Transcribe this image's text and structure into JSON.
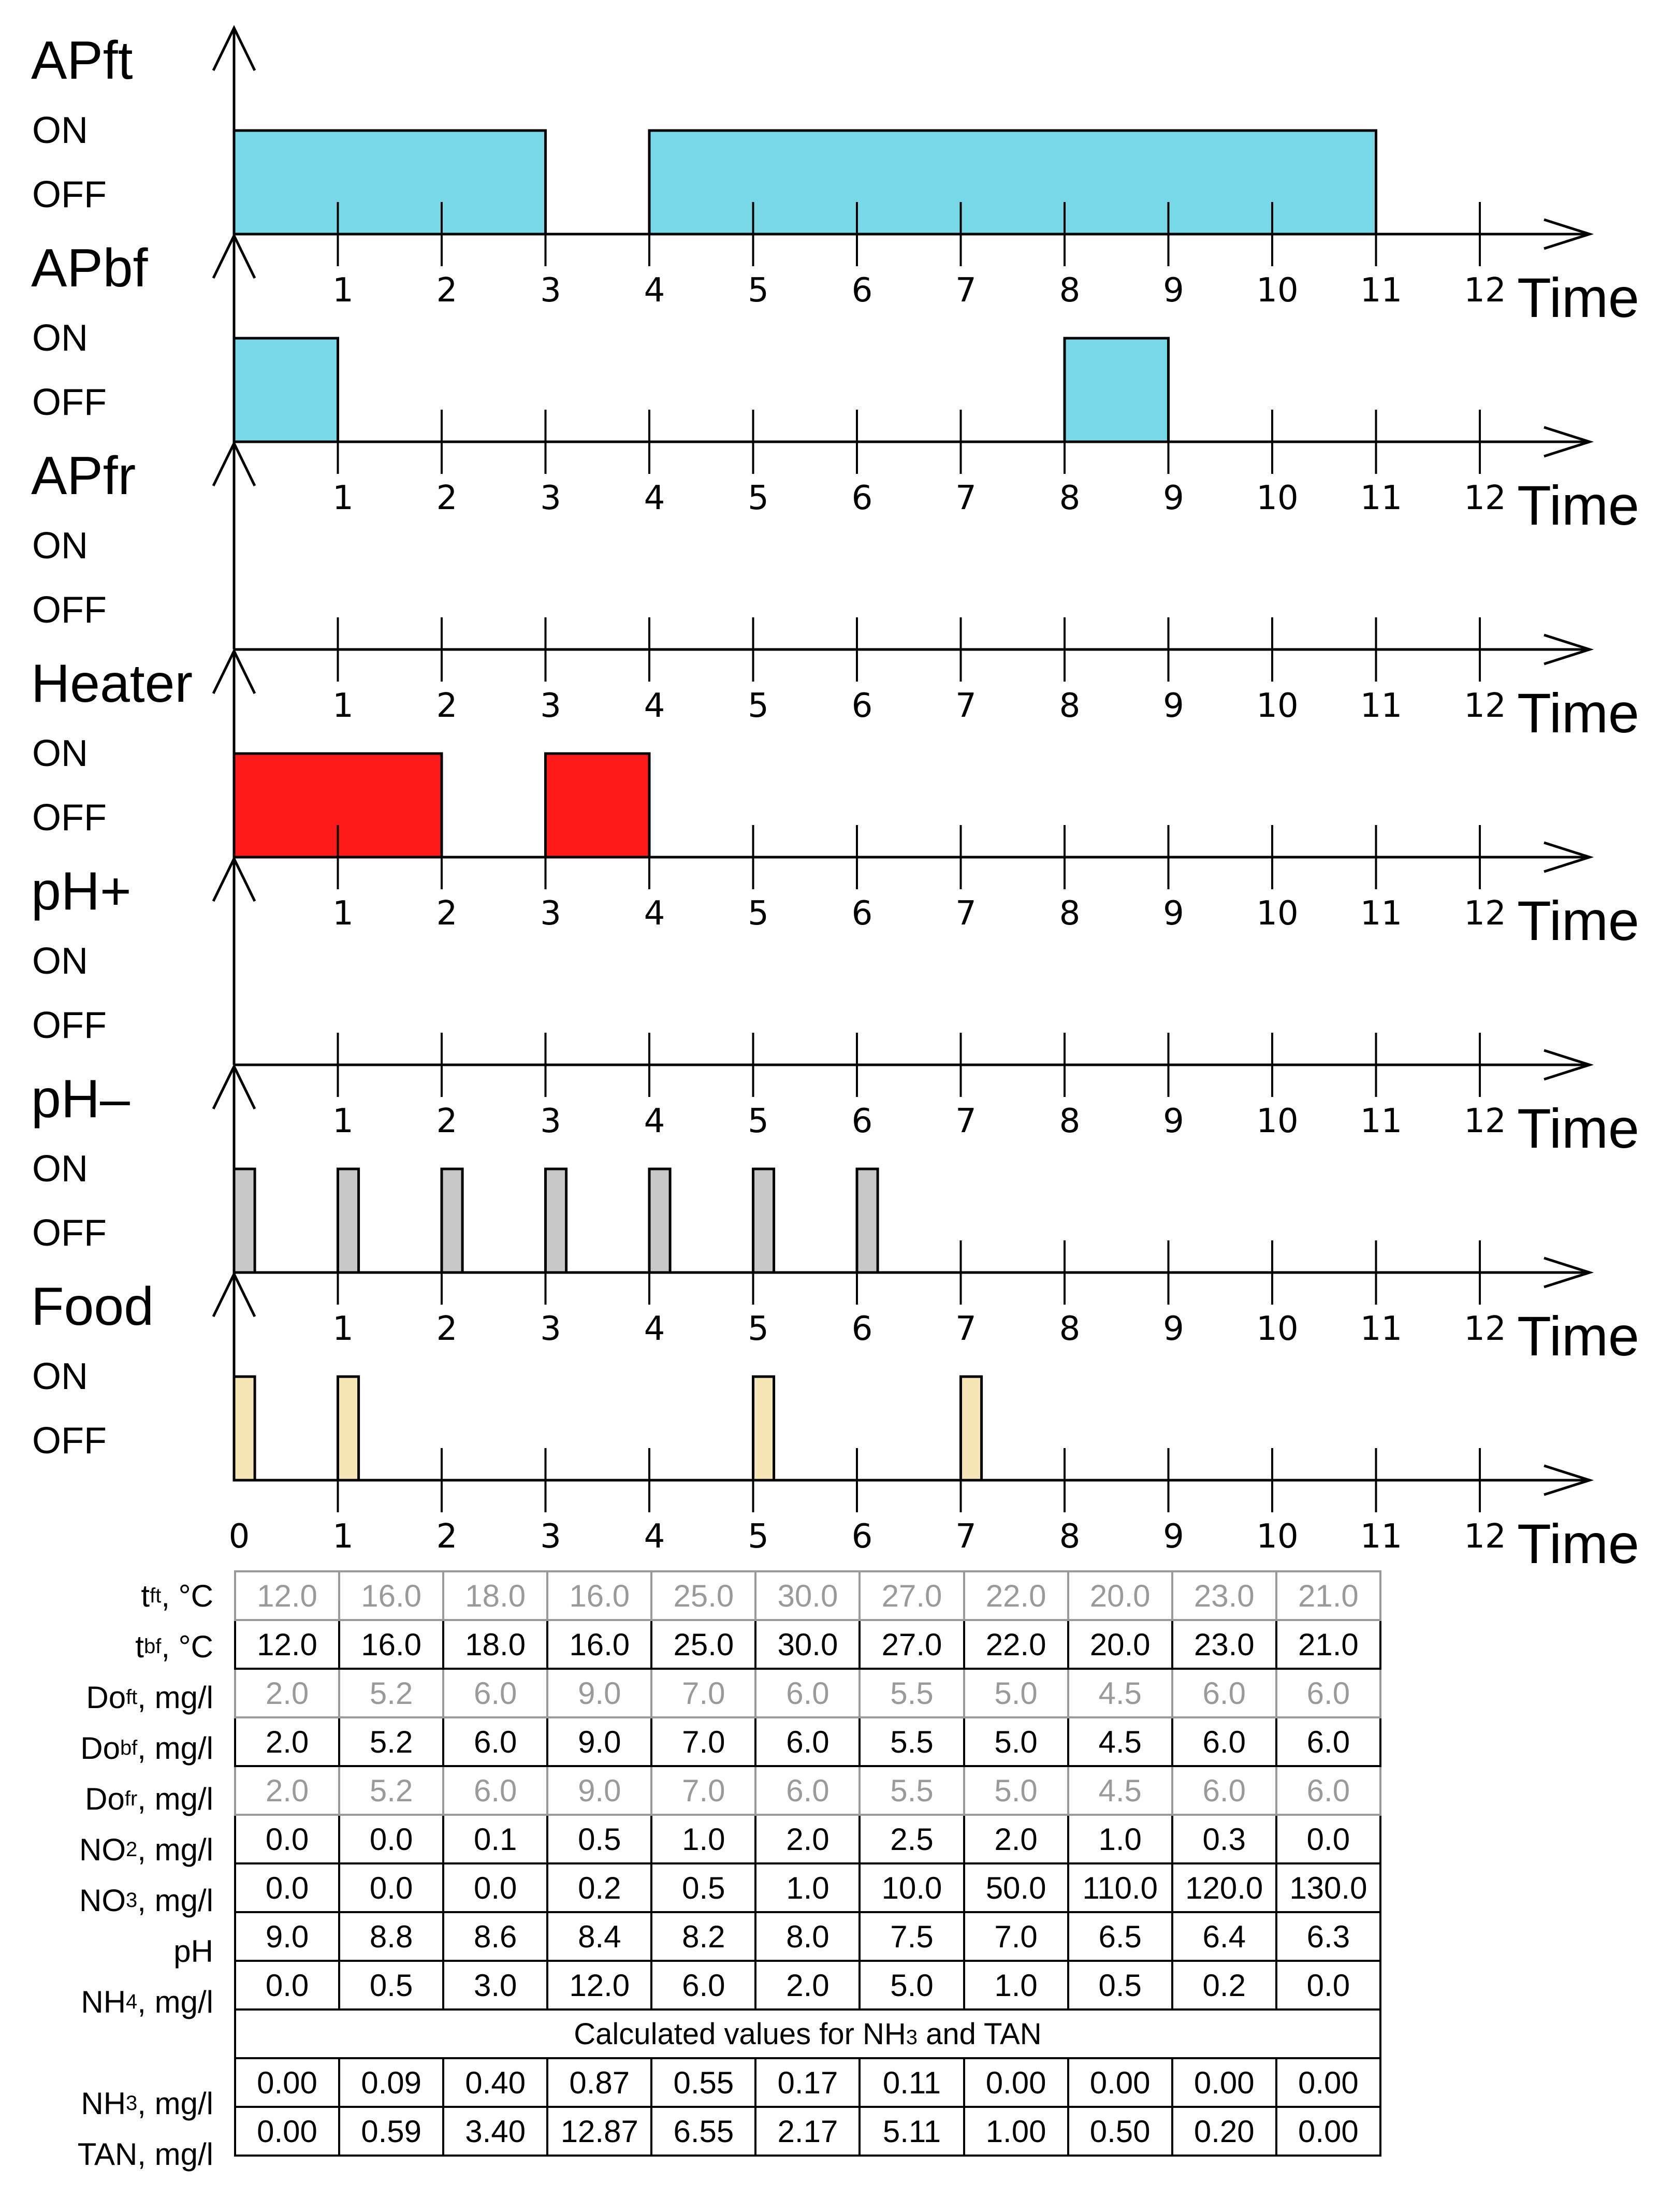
{
  "on_label": "ON",
  "off_label": "OFF",
  "axis_label": "Time",
  "tick_labels": [
    "0",
    "1",
    "2",
    "3",
    "4",
    "5",
    "6",
    "7",
    "8",
    "9",
    "10",
    "11",
    "12"
  ],
  "colors": {
    "APft": "#77d8e8",
    "APbf": "#77d8e8",
    "Heater": "#ff1a1a",
    "pH_minus": "#c8c8c8",
    "Food": "#f7e6b5"
  },
  "channels": [
    {
      "title": "APft",
      "color": "#77d8e8",
      "on_intervals": [
        [
          0,
          3
        ],
        [
          4,
          11
        ]
      ]
    },
    {
      "title": "APbf",
      "color": "#77d8e8",
      "on_intervals": [
        [
          0,
          1
        ],
        [
          8,
          9
        ]
      ]
    },
    {
      "title": "APfr",
      "color": "#77d8e8",
      "on_intervals": []
    },
    {
      "title": "Heater",
      "color": "#ff1a1a",
      "on_intervals": [
        [
          0,
          2
        ],
        [
          3,
          4
        ]
      ]
    },
    {
      "title": "pH+",
      "color": "#c8c8c8",
      "on_intervals": []
    },
    {
      "title": "pH–",
      "color": "#c8c8c8",
      "on_intervals": [
        [
          0,
          0.2
        ],
        [
          1,
          1.2
        ],
        [
          2,
          2.2
        ],
        [
          3,
          3.2
        ],
        [
          4,
          4.2
        ],
        [
          5,
          5.2
        ],
        [
          6,
          6.2
        ]
      ]
    },
    {
      "title": "Food",
      "color": "#f7e6b5",
      "on_intervals": [
        [
          0,
          0.2
        ],
        [
          1,
          1.2
        ],
        [
          5,
          5.2
        ],
        [
          7,
          7.2
        ]
      ]
    }
  ],
  "table": {
    "rows": [
      {
        "label_main": "t",
        "label_sub": "ft",
        "label_unit": ", °C",
        "faded": true,
        "values": [
          "12.0",
          "16.0",
          "18.0",
          "16.0",
          "25.0",
          "30.0",
          "27.0",
          "22.0",
          "20.0",
          "23.0",
          "21.0"
        ]
      },
      {
        "label_main": "t",
        "label_sub": "bf",
        "label_unit": ", °C",
        "faded": false,
        "values": [
          "12.0",
          "16.0",
          "18.0",
          "16.0",
          "25.0",
          "30.0",
          "27.0",
          "22.0",
          "20.0",
          "23.0",
          "21.0"
        ]
      },
      {
        "label_main": "Do",
        "label_sub": "ft",
        "label_unit": ", mg/l",
        "faded": true,
        "values": [
          "2.0",
          "5.2",
          "6.0",
          "9.0",
          "7.0",
          "6.0",
          "5.5",
          "5.0",
          "4.5",
          "6.0",
          "6.0"
        ]
      },
      {
        "label_main": "Do",
        "label_sub": "bf",
        "label_unit": ", mg/l",
        "faded": false,
        "values": [
          "2.0",
          "5.2",
          "6.0",
          "9.0",
          "7.0",
          "6.0",
          "5.5",
          "5.0",
          "4.5",
          "6.0",
          "6.0"
        ]
      },
      {
        "label_main": "Do",
        "label_sub": "fr",
        "label_unit": ", mg/l",
        "faded": true,
        "values": [
          "2.0",
          "5.2",
          "6.0",
          "9.0",
          "7.0",
          "6.0",
          "5.5",
          "5.0",
          "4.5",
          "6.0",
          "6.0"
        ]
      },
      {
        "label_main": "NO",
        "label_sub": "2",
        "label_unit": ", mg/l",
        "faded": false,
        "values": [
          "0.0",
          "0.0",
          "0.1",
          "0.5",
          "1.0",
          "2.0",
          "2.5",
          "2.0",
          "1.0",
          "0.3",
          "0.0"
        ]
      },
      {
        "label_main": "NO",
        "label_sub": "3",
        "label_unit": ", mg/l",
        "faded": false,
        "values": [
          "0.0",
          "0.0",
          "0.0",
          "0.2",
          "0.5",
          "1.0",
          "10.0",
          "50.0",
          "110.0",
          "120.0",
          "130.0"
        ]
      },
      {
        "label_main": "pH",
        "label_sub": "",
        "label_unit": "",
        "faded": false,
        "values": [
          "9.0",
          "8.8",
          "8.6",
          "8.4",
          "8.2",
          "8.0",
          "7.5",
          "7.0",
          "6.5",
          "6.4",
          "6.3"
        ]
      },
      {
        "label_main": "NH",
        "label_sub": "4",
        "label_unit": ", mg/l",
        "faded": false,
        "values": [
          "0.0",
          "0.5",
          "3.0",
          "12.0",
          "6.0",
          "2.0",
          "5.0",
          "1.0",
          "0.5",
          "0.2",
          "0.0"
        ]
      }
    ],
    "subheader_main": "Calculated values for NH",
    "subheader_sub": "3",
    "subheader_tail": " and TAN",
    "calc_rows": [
      {
        "label_main": "NH",
        "label_sub": "3",
        "label_unit": ", mg/l",
        "faded": false,
        "values": [
          "0.00",
          "0.09",
          "0.40",
          "0.87",
          "0.55",
          "0.17",
          "0.11",
          "0.00",
          "0.00",
          "0.00",
          "0.00"
        ]
      },
      {
        "label_main": "TAN",
        "label_sub": "",
        "label_unit": ", mg/l",
        "faded": false,
        "values": [
          "0.00",
          "0.59",
          "3.40",
          "12.87",
          "6.55",
          "2.17",
          "5.11",
          "1.00",
          "0.50",
          "0.20",
          "0.00"
        ]
      }
    ]
  }
}
